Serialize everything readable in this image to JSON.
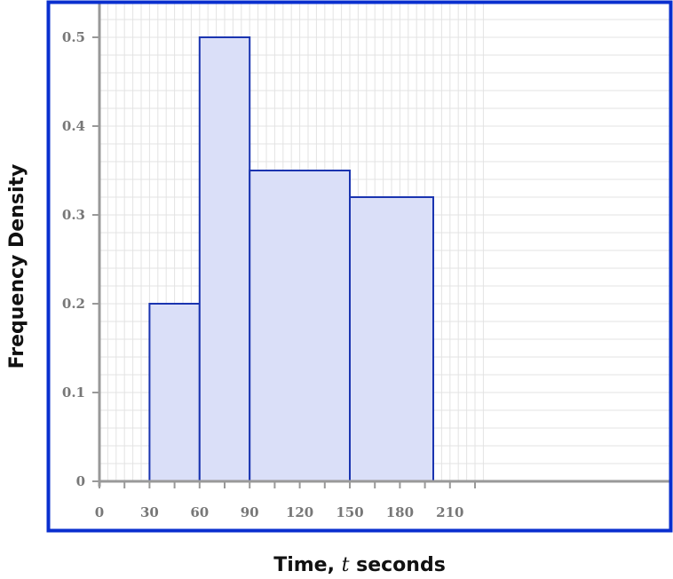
{
  "chart_data": {
    "type": "histogram",
    "title": "",
    "xlabel": {
      "prefix": "Time, ",
      "var": "t",
      "suffix": " seconds"
    },
    "ylabel": "Frequency Density",
    "xlim": [
      0,
      230
    ],
    "ylim": [
      0,
      0.55
    ],
    "x_ticks": [
      0,
      30,
      60,
      90,
      120,
      150,
      180,
      210
    ],
    "y_ticks": [
      0,
      0.1,
      0.2,
      0.3,
      0.4,
      0.5
    ],
    "y_tick_labels": [
      "0",
      "0.1",
      "0.2",
      "0.3",
      "0.4",
      "0.5"
    ],
    "bins": [
      {
        "start": 30,
        "end": 60,
        "density": 0.2
      },
      {
        "start": 60,
        "end": 90,
        "density": 0.5
      },
      {
        "start": 90,
        "end": 150,
        "density": 0.35
      },
      {
        "start": 150,
        "end": 200,
        "density": 0.32
      }
    ],
    "grid": true,
    "colors": {
      "frame": "#0a2fcf",
      "bar_fill": "#dadff8",
      "bar_stroke": "#1a34b0",
      "axis": "#999999",
      "grid": "#e3e3e3"
    }
  }
}
